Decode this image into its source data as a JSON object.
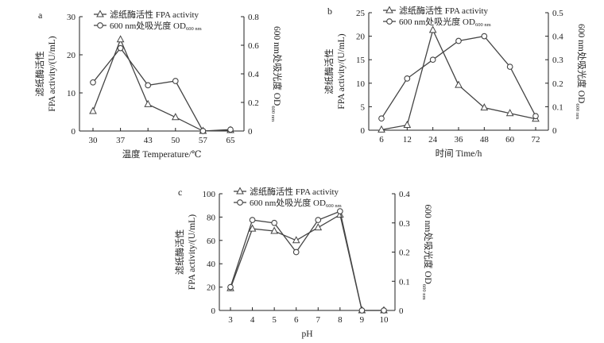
{
  "colors": {
    "line": "#444444",
    "axis": "#222222",
    "marker_fill": "#ffffff"
  },
  "chart_data": [
    {
      "type": "line",
      "panel_label": "a",
      "xlabel": "温度  Temperature/℃",
      "x_categories": [
        "30",
        "37",
        "43",
        "50",
        "57",
        "65"
      ],
      "y_left": {
        "ylim": [
          0,
          30
        ],
        "ticks": [
          "0",
          "10",
          "20",
          "30"
        ],
        "label_cn": "滤纸酶活性",
        "label_en": "FPA activity/(U/mL)"
      },
      "y_right": {
        "ylim": [
          0,
          0.8
        ],
        "ticks": [
          "0",
          "0.2",
          "0.4",
          "0.6",
          "0.8"
        ],
        "label_main": "600 nm处吸光度  OD",
        "label_sub": "600 nm"
      },
      "legend": {
        "placement": "top",
        "series_fpa": "滤纸酶活性 FPA activity",
        "series_od_main": "600 nm处吸光度   OD",
        "series_od_sub": "600 nm"
      },
      "series": [
        {
          "key": "fpa",
          "axis": "left",
          "marker": "triangle",
          "values": [
            5.2,
            24.0,
            7.0,
            3.6,
            0.0,
            0.2
          ]
        },
        {
          "key": "od",
          "axis": "right",
          "marker": "circle",
          "values": [
            0.34,
            0.58,
            0.32,
            0.35,
            0.0,
            0.01
          ]
        }
      ]
    },
    {
      "type": "line",
      "panel_label": "b",
      "xlabel": "时间  Time/h",
      "x_categories": [
        "6",
        "12",
        "24",
        "36",
        "48",
        "60",
        "72"
      ],
      "y_left": {
        "ylim": [
          0,
          25
        ],
        "ticks": [
          "0",
          "5",
          "10",
          "15",
          "20",
          "25"
        ],
        "label_cn": "滤纸酶活性",
        "label_en": "FPA activity/(U/mL)"
      },
      "y_right": {
        "ylim": [
          0,
          0.5
        ],
        "ticks": [
          "0",
          "0.1",
          "0.2",
          "0.3",
          "0.4",
          "0.5"
        ],
        "label_main": "600 nm处吸光度  OD",
        "label_sub": "600 nm"
      },
      "legend": {
        "placement": "top",
        "series_fpa": "滤纸酶活性 FPA activity",
        "series_od_main": "600 nm处吸光度   OD",
        "series_od_sub": "600 nm"
      },
      "series": [
        {
          "key": "fpa",
          "axis": "left",
          "marker": "triangle",
          "values": [
            0.1,
            1.1,
            21.3,
            9.6,
            4.8,
            3.6,
            2.4
          ]
        },
        {
          "key": "od",
          "axis": "right",
          "marker": "circle",
          "values": [
            0.05,
            0.22,
            0.3,
            0.38,
            0.4,
            0.27,
            0.06
          ]
        }
      ]
    },
    {
      "type": "line",
      "panel_label": "c",
      "xlabel": "pH",
      "x_categories": [
        "3",
        "4",
        "5",
        "6",
        "7",
        "8",
        "9",
        "10"
      ],
      "y_left": {
        "ylim": [
          0,
          100
        ],
        "ticks": [
          "0",
          "20",
          "40",
          "60",
          "80",
          "100"
        ],
        "label_cn": "滤纸酶活性",
        "label_en": "FPA activity/(U/mL)"
      },
      "y_right": {
        "ylim": [
          0,
          0.4
        ],
        "ticks": [
          "0",
          "0.1",
          "0.2",
          "0.3",
          "0.4"
        ],
        "label_main": "600 nm处吸光度  OD",
        "label_sub": "600 nm"
      },
      "legend": {
        "placement": "top",
        "series_fpa": "滤纸酶活性 FPA activity",
        "series_od_main": "600 nm处吸光度   OD",
        "series_od_sub": "600 nm"
      },
      "series": [
        {
          "key": "fpa",
          "axis": "left",
          "marker": "triangle",
          "values": [
            19,
            70,
            68,
            60,
            71,
            82,
            0,
            0
          ]
        },
        {
          "key": "od",
          "axis": "right",
          "marker": "circle",
          "values": [
            0.08,
            0.31,
            0.3,
            0.2,
            0.31,
            0.34,
            0.0,
            0.0
          ]
        }
      ]
    }
  ]
}
